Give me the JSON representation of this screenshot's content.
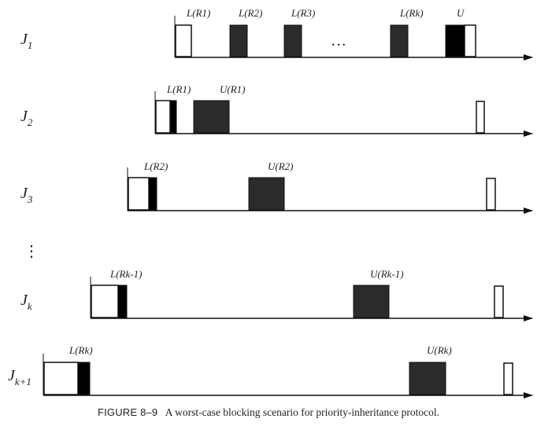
{
  "jobs": [
    {
      "id": "J1",
      "base": "J",
      "sub": "1",
      "labels": [
        "L(R1)",
        "L(R2)",
        "L(R3)",
        "L(Rk)",
        "U"
      ],
      "ellipsis": "…"
    },
    {
      "id": "J2",
      "base": "J",
      "sub": "2",
      "labels": [
        "L(R1)",
        "U(R1)"
      ]
    },
    {
      "id": "J3",
      "base": "J",
      "sub": "3",
      "labels": [
        "L(R2)",
        "U(R2)"
      ]
    },
    {
      "id": "Jk",
      "base": "J",
      "sub": "k",
      "labels": [
        "L(Rk-1)",
        "U(Rk-1)"
      ]
    },
    {
      "id": "Jk+1",
      "base": "J",
      "sub": "k+1",
      "labels": [
        "L(Rk)",
        "U(Rk)"
      ]
    }
  ],
  "vertical_ellipsis": "⋮",
  "caption": {
    "figure": "FIGURE 8–9",
    "text": "A worst-case blocking scenario for priority-inheritance protocol."
  }
}
